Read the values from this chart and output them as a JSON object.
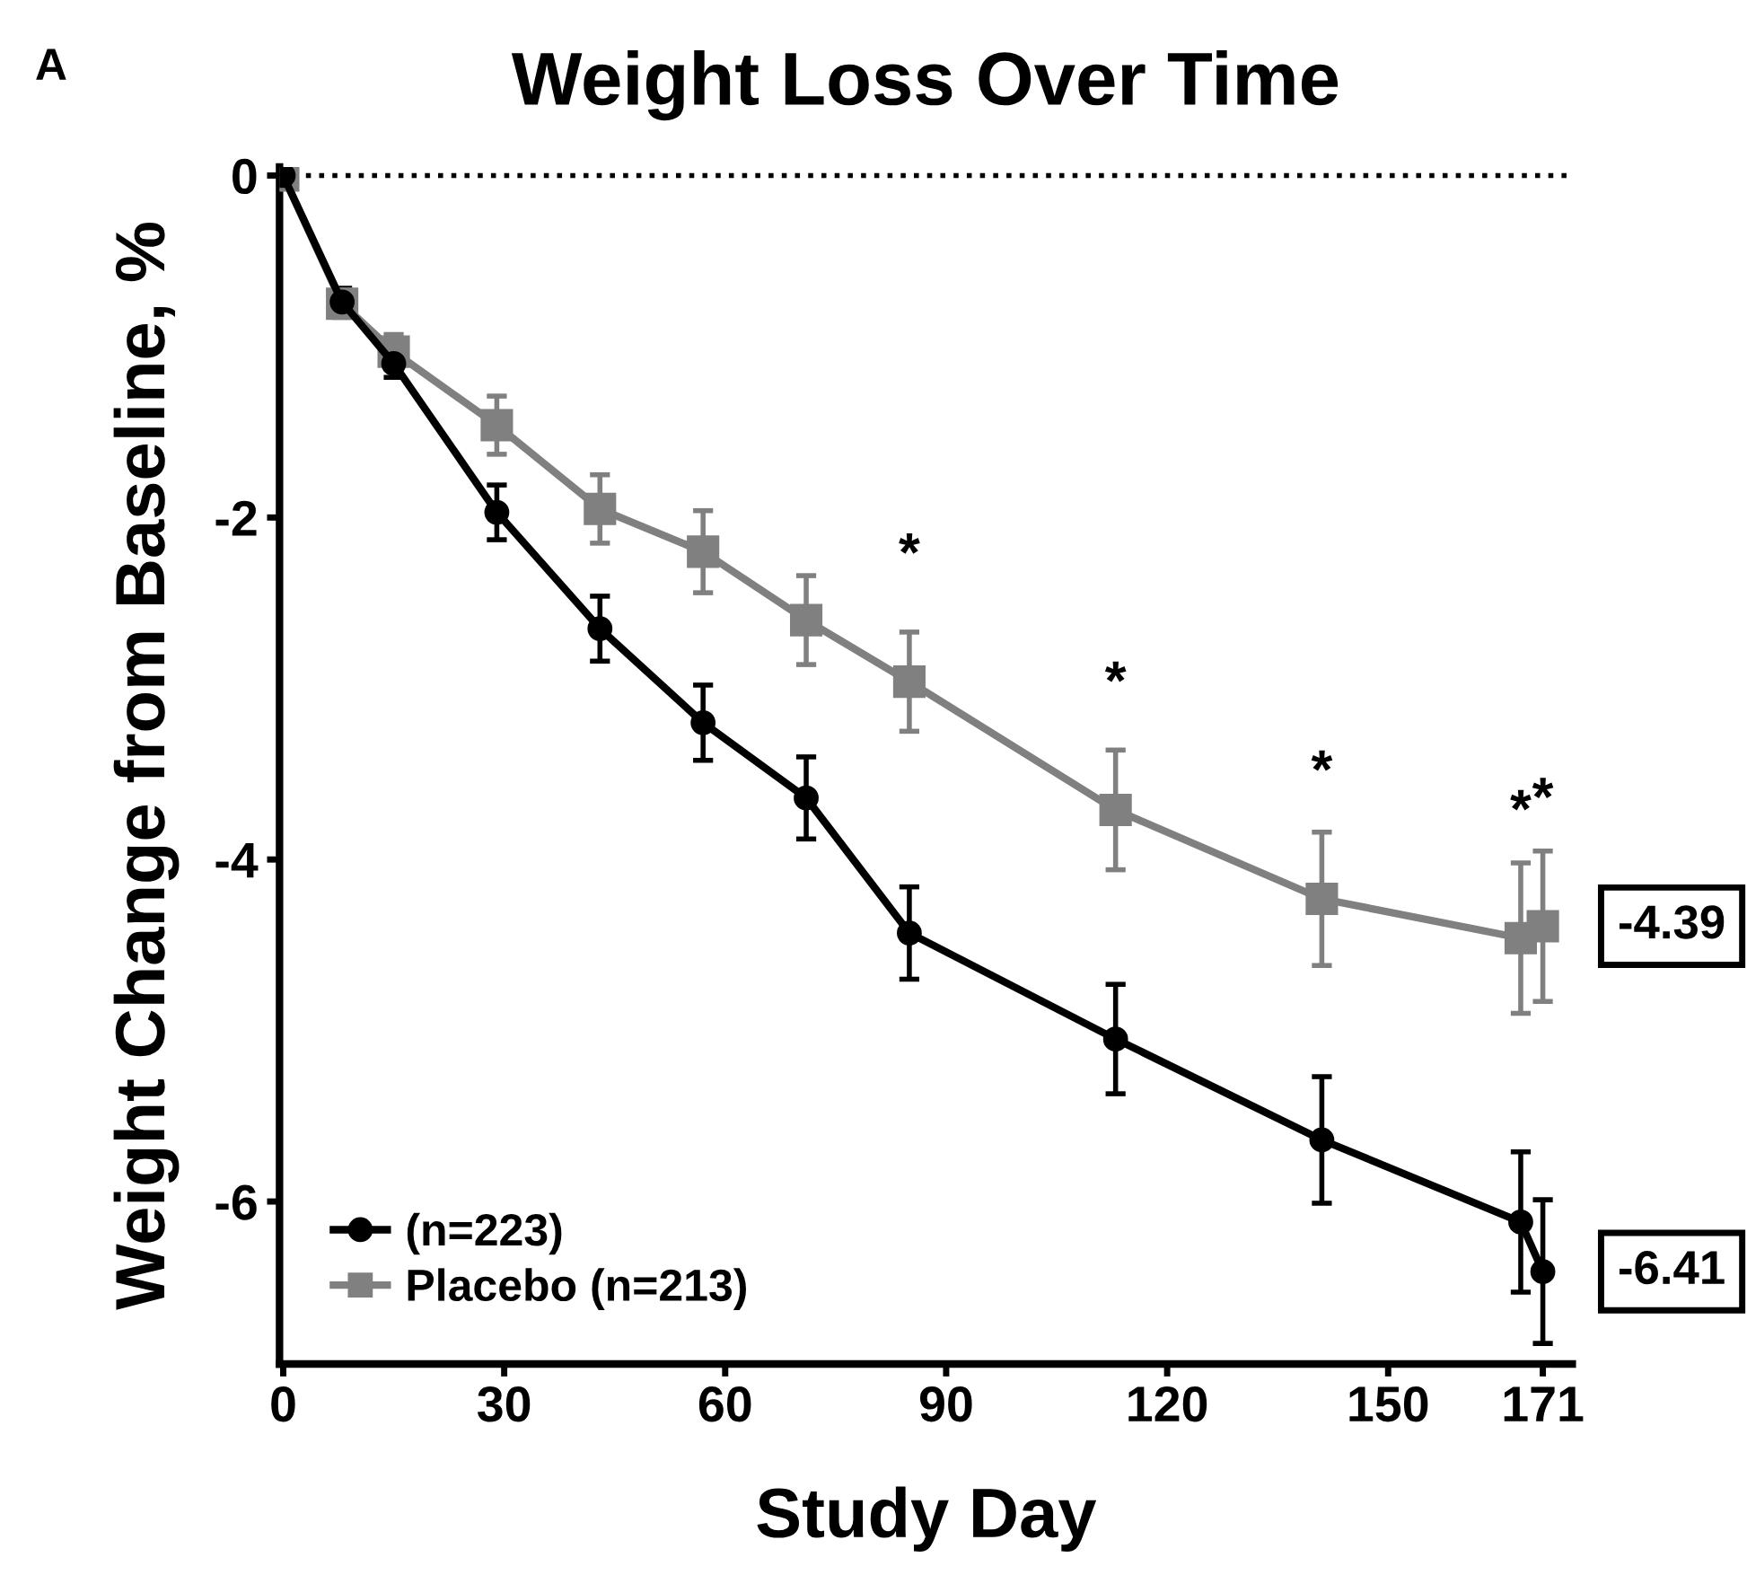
{
  "chart_data": {
    "type": "line",
    "title": "Weight Loss Over Time",
    "xlabel": "Study Day",
    "ylabel": "Weight Change from Baseline, %",
    "series": [
      {
        "name": "(n=223)",
        "color": "#000000",
        "marker": "circle",
        "x": [
          0,
          8,
          15,
          29,
          43,
          57,
          71,
          85,
          113,
          141,
          168,
          171
        ],
        "values": [
          0,
          -0.74,
          -1.1,
          -1.97,
          -2.65,
          -3.2,
          -3.64,
          -4.43,
          -5.05,
          -5.64,
          -6.12,
          -6.41
        ],
        "errors": [
          null,
          0.08,
          0.08,
          0.16,
          0.19,
          0.22,
          0.24,
          0.27,
          0.32,
          0.37,
          0.41,
          0.42
        ]
      },
      {
        "name": "Placebo (n=213)",
        "color": "#808080",
        "marker": "square",
        "x": [
          0,
          8,
          15,
          29,
          43,
          57,
          71,
          85,
          113,
          141,
          168,
          171
        ],
        "values": [
          0,
          -0.75,
          -1.03,
          -1.46,
          -1.95,
          -2.2,
          -2.6,
          -2.96,
          -3.71,
          -4.23,
          -4.46,
          -4.39
        ],
        "errors": [
          null,
          0.08,
          0.1,
          0.17,
          0.2,
          0.24,
          0.26,
          0.29,
          0.35,
          0.39,
          0.44,
          0.44
        ]
      }
    ],
    "xlim": [
      -0.5,
      175
    ],
    "ylim": [
      -6.95,
      0.05
    ],
    "xticks": [
      0,
      30,
      60,
      90,
      120,
      150,
      171
    ],
    "yticks": [
      0,
      -2,
      -4,
      -6
    ],
    "ref_lines": [
      {
        "axis": "y",
        "value": 0,
        "label": null,
        "color": "#000000",
        "line_style": "dotted"
      }
    ],
    "annotations": [
      "A",
      {
        "text": "*",
        "x": 85,
        "y": -2.96
      },
      {
        "text": "*",
        "x": 113,
        "y": -3.71
      },
      {
        "text": "*",
        "x": 141,
        "y": -4.23
      },
      {
        "text": "*",
        "x": 168,
        "y": -4.46
      },
      {
        "text": "*",
        "x": 171,
        "y": -4.39
      },
      {
        "text": "-4.39",
        "x": 171,
        "y": -4.39
      },
      {
        "text": "-6.41",
        "x": 171,
        "y": -6.41
      }
    ],
    "grid": false,
    "legend": "bottom left",
    "line_style": "solid"
  }
}
